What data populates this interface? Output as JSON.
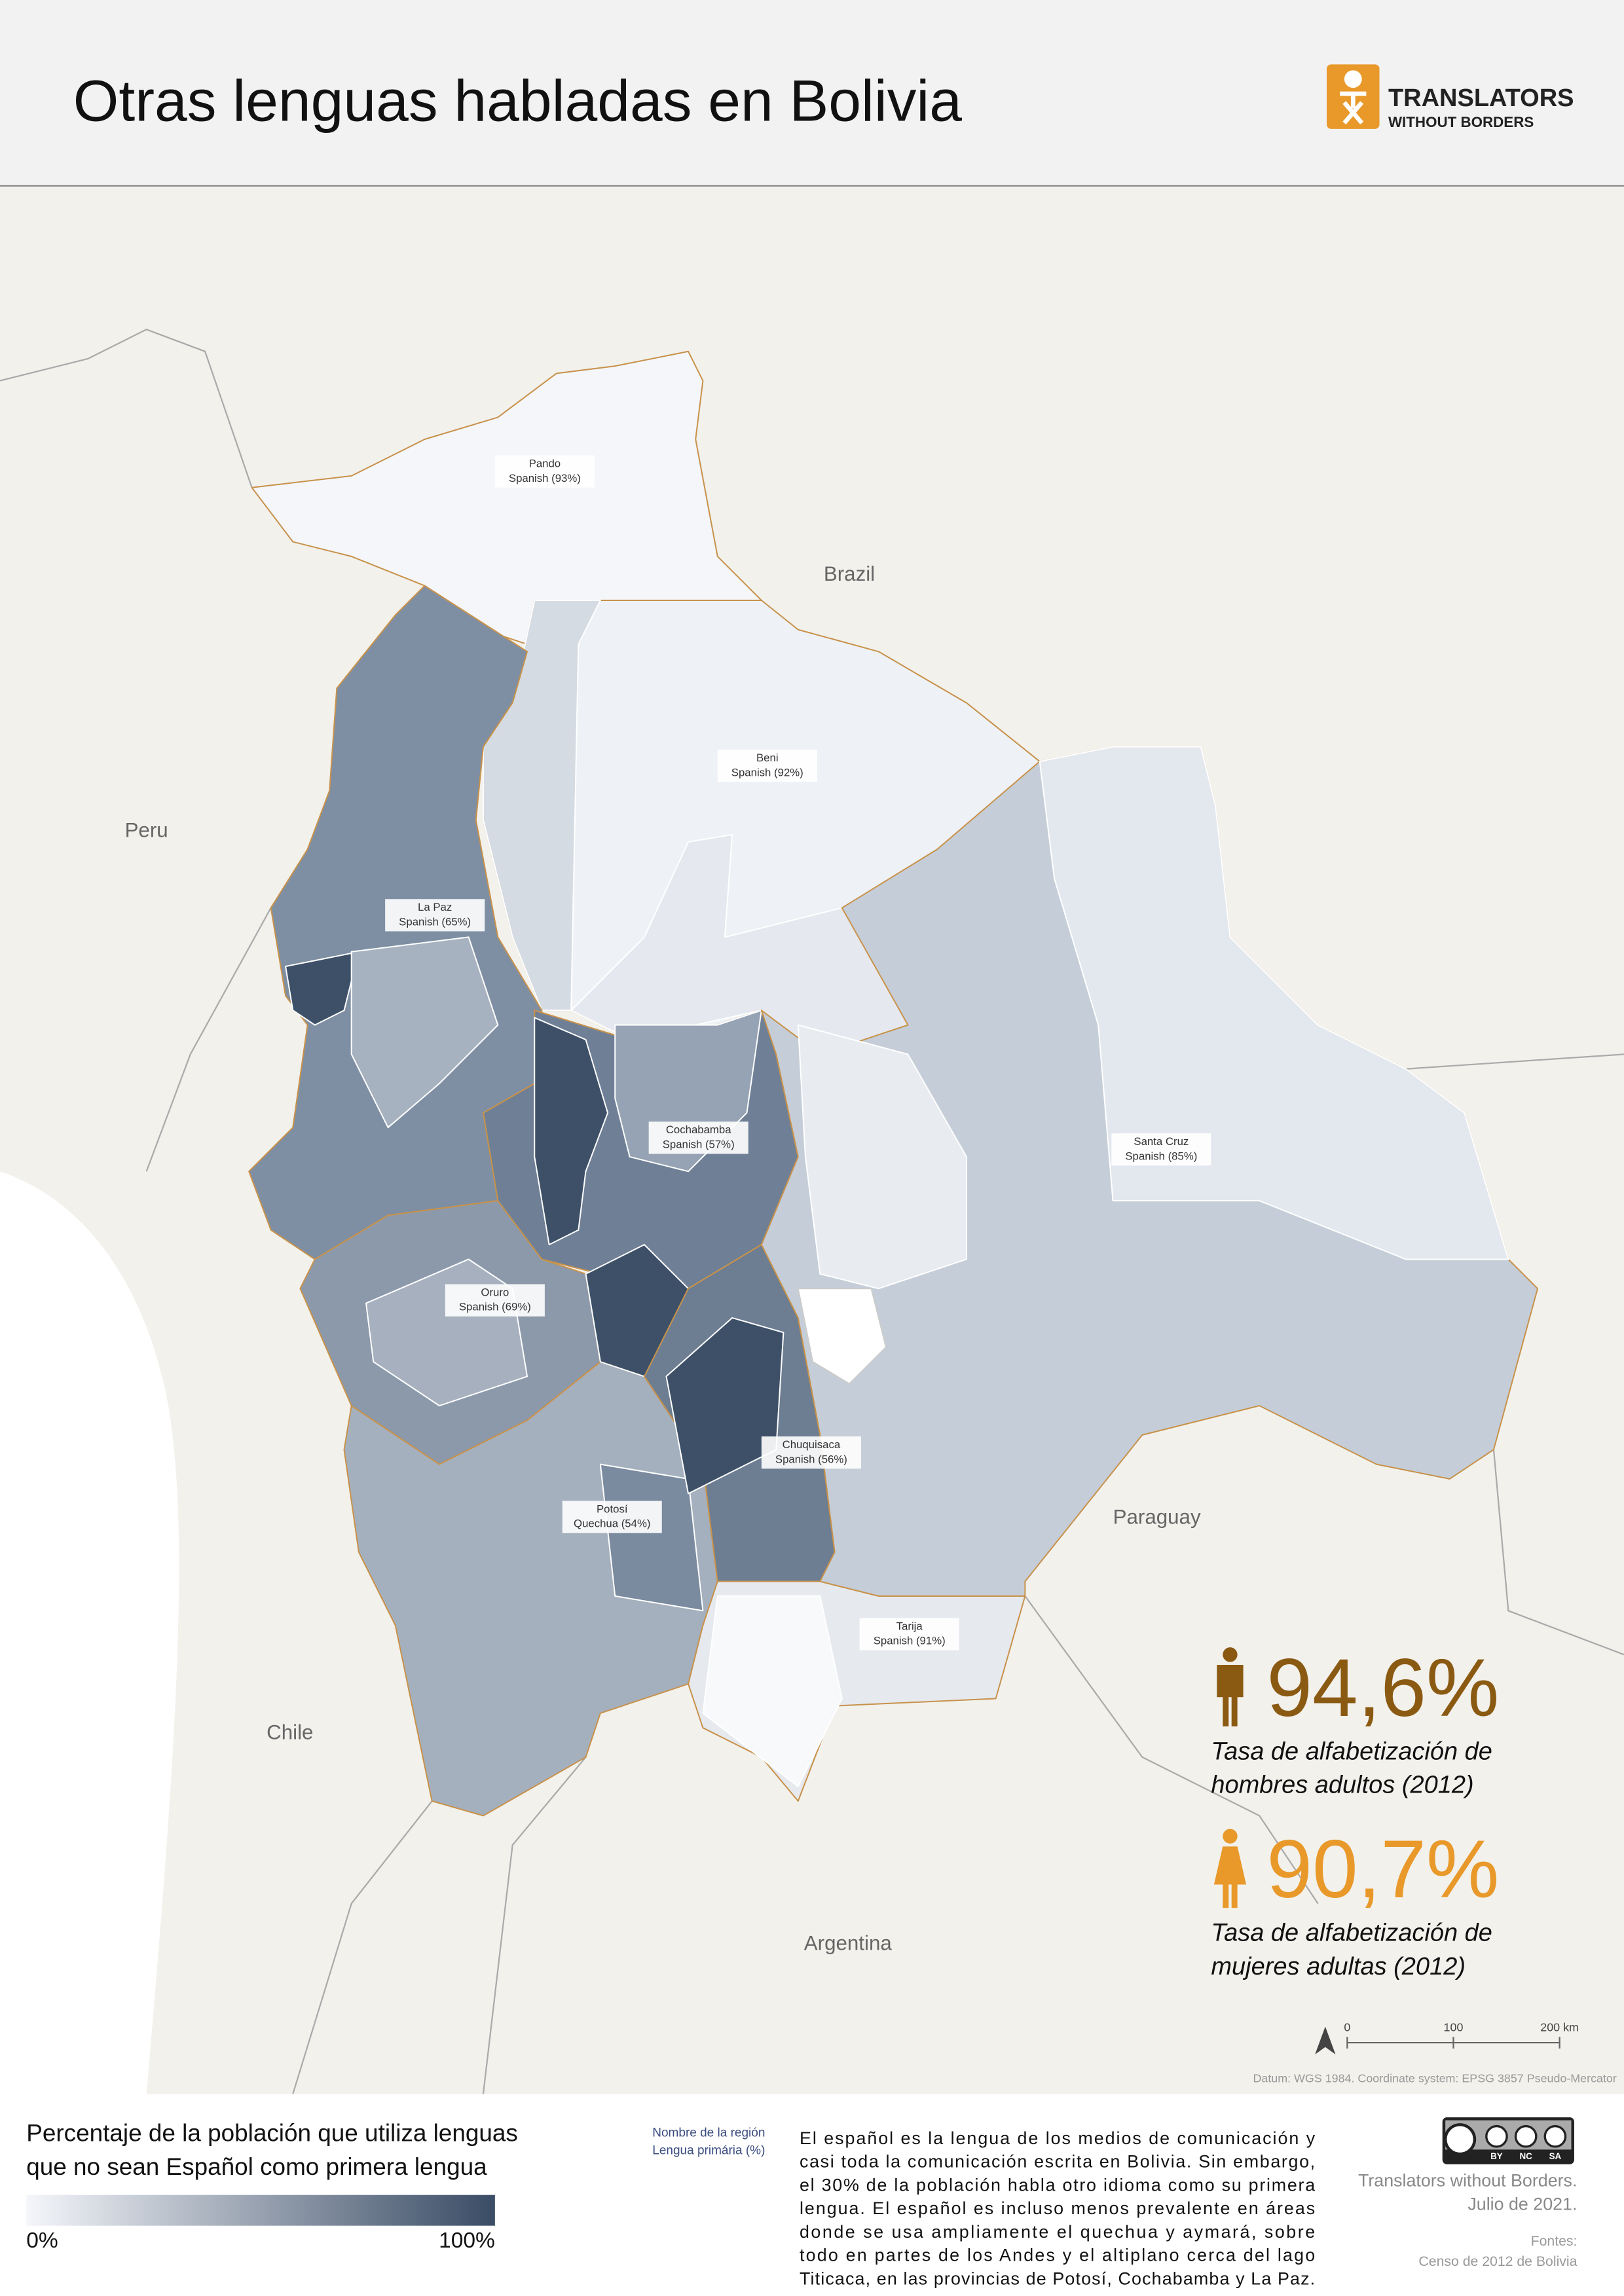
{
  "header": {
    "title": "Otras lenguas habladas en Bolivia",
    "logo": {
      "name": "TRANSLATORS",
      "tagline": "WITHOUT BORDERS"
    }
  },
  "map": {
    "departments": [
      {
        "name": "Pando",
        "language": "Spanish (93%)"
      },
      {
        "name": "Beni",
        "language": "Spanish (92%)"
      },
      {
        "name": "La Paz",
        "language": "Spanish (65%)"
      },
      {
        "name": "Cochabamba",
        "language": "Spanish (57%)"
      },
      {
        "name": "Santa Cruz",
        "language": "Spanish (85%)"
      },
      {
        "name": "Oruro",
        "language": "Spanish (69%)"
      },
      {
        "name": "Chuquisaca",
        "language": "Spanish (56%)"
      },
      {
        "name": "Potosí",
        "language": "Quechua (54%)"
      },
      {
        "name": "Tarija",
        "language": "Spanish (91%)"
      }
    ],
    "countries": [
      "Brazil",
      "Peru",
      "Paraguay",
      "Chile",
      "Argentina"
    ],
    "scale": [
      "0",
      "100",
      "200 km"
    ],
    "datum": "Datum: WGS 1984. Coordinate system: EPSG 3857 Pseudo-Mercator"
  },
  "stats": [
    {
      "value": "94,6%",
      "caption": [
        "Tasa de alfabetización de",
        "hombres adultos (2012)"
      ]
    },
    {
      "value": "90,7%",
      "caption": [
        "Tasa de alfabetización de",
        "mujeres adultas (2012)"
      ]
    }
  ],
  "legend": {
    "title": [
      "Percentaje de la población que utiliza lenguas",
      "que no sean Español como primera lengua"
    ],
    "min": "0%",
    "max": "100%",
    "key": [
      "Nombre de la región",
      "Lengua primária (%)"
    ]
  },
  "description": [
    "El español es la lengua de los medios de comunicación y",
    "casi toda la comunicación escrita en Bolivia. Sin embargo,",
    "el 30% de la población habla otro idioma como su primera",
    "lengua. El español es incluso menos prevalente en áreas",
    "donde se usa ampliamente el quechua y aymará, sobre",
    "todo en partes de los Andes y el altiplano cerca del lago",
    "Titicaca, en las provincias de Potosí, Cochabamba y La Paz."
  ],
  "credits": {
    "license": [
      "BY",
      "NC",
      "SA"
    ],
    "author": [
      "Translators without Borders.",
      "Julio de 2021."
    ],
    "source_title": "Fontes:",
    "source": "Censo de 2012 de Bolivia"
  }
}
